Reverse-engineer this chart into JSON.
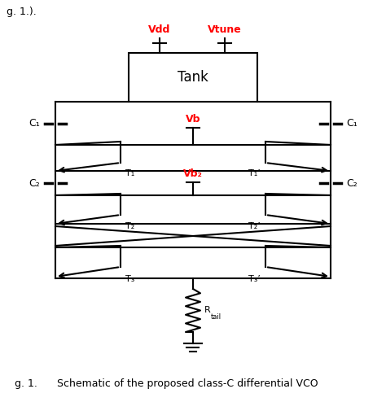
{
  "title": "Schematic of the proposed class-C differential VCO",
  "fig_label": "g. 1.).",
  "vdd_label": "Vdd",
  "vtune_label": "Vtune",
  "vb_label": "Vb",
  "vb2_label": "Vb₂",
  "tank_label": "Tank",
  "c1_label": "C₁",
  "c2_label": "C₂",
  "t1_label": "T₁",
  "t1p_label": "T₁’",
  "t2_label": "T₂",
  "t2p_label": "T₂’",
  "t3_label": "T₃",
  "t3p_label": "T₃’",
  "red_color": "#FF0000",
  "black_color": "#000000",
  "bg_color": "#FFFFFF",
  "line_width": 1.5
}
